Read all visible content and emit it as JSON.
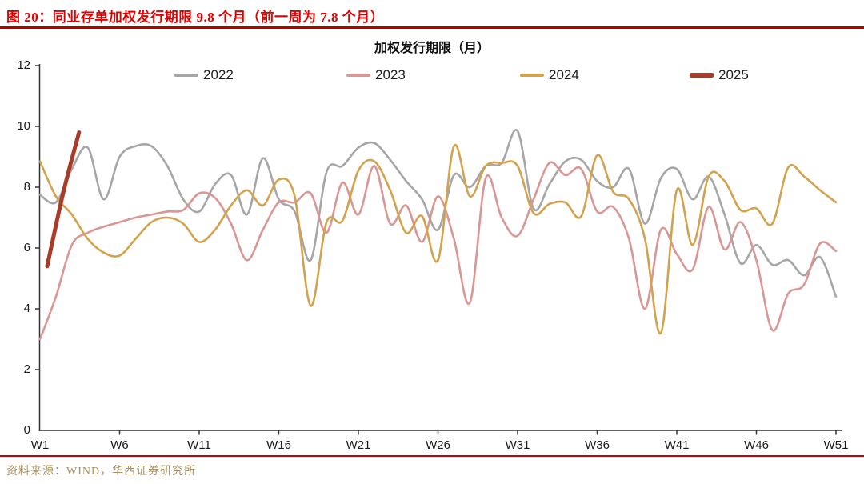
{
  "header": {
    "title": "图 20：同业存单加权发行期限 9.8 个月（前一周为 7.8 个月）"
  },
  "footer": {
    "source": "资料来源：WIND，华西证券研究所"
  },
  "colors": {
    "header_red": "#e00000",
    "rule_red": "#b50000",
    "bottom_rule_red": "#cc0000",
    "source_gold": "#a8905f",
    "axis": "#333333"
  },
  "chart_data": {
    "type": "line",
    "title": "加权发行期限（月）",
    "xlabel": "",
    "ylabel": "",
    "ylim": [
      0,
      12
    ],
    "y_ticks": [
      0,
      2,
      4,
      6,
      8,
      10,
      12
    ],
    "x_week_range": [
      1,
      51
    ],
    "x_tick_weeks": [
      1,
      6,
      11,
      16,
      21,
      26,
      31,
      36,
      41,
      46,
      51
    ],
    "x_ticklabels": [
      "W1",
      "W6",
      "W11",
      "W16",
      "W21",
      "W26",
      "W31",
      "W36",
      "W41",
      "W46",
      "W51"
    ],
    "grid": false,
    "legend_position": "top",
    "current_value": 9.8,
    "previous_week_value": 7.8,
    "series": [
      {
        "name": "2022",
        "color": "#a6a6a6",
        "line_width": 2.6,
        "start_week": 1,
        "values": [
          7.75,
          7.5,
          8.6,
          9.3,
          7.6,
          9.0,
          9.35,
          9.35,
          8.7,
          7.6,
          7.2,
          8.1,
          8.4,
          7.1,
          8.95,
          7.6,
          7.2,
          5.6,
          8.5,
          8.7,
          9.3,
          9.45,
          8.9,
          8.2,
          7.6,
          6.6,
          8.4,
          8.0,
          8.7,
          8.8,
          9.85,
          7.3,
          8.1,
          8.85,
          8.9,
          8.2,
          8.0,
          8.6,
          6.8,
          8.3,
          8.6,
          7.6,
          8.35,
          7.1,
          5.5,
          6.1,
          5.45,
          5.6,
          5.1,
          5.7,
          4.4
        ]
      },
      {
        "name": "2023",
        "color": "#d99694",
        "line_width": 2.6,
        "start_week": 1,
        "values": [
          3.0,
          4.4,
          6.1,
          6.5,
          6.7,
          6.85,
          7.0,
          7.1,
          7.2,
          7.25,
          7.8,
          7.65,
          6.8,
          5.6,
          6.6,
          7.5,
          7.5,
          7.8,
          6.5,
          8.15,
          7.1,
          8.7,
          6.8,
          7.4,
          6.2,
          7.7,
          6.3,
          4.2,
          8.3,
          7.0,
          6.4,
          7.6,
          8.8,
          8.4,
          8.6,
          7.2,
          7.35,
          6.3,
          4.0,
          6.6,
          5.8,
          5.3,
          7.35,
          5.95,
          6.85,
          5.6,
          3.3,
          4.5,
          4.8,
          6.15,
          5.9
        ]
      },
      {
        "name": "2024",
        "color": "#d2a24c",
        "line_width": 2.6,
        "start_week": 1,
        "values": [
          8.85,
          7.7,
          7.1,
          6.3,
          5.85,
          5.75,
          6.3,
          6.85,
          7.0,
          6.8,
          6.2,
          6.6,
          7.4,
          7.9,
          7.4,
          8.25,
          7.7,
          4.1,
          6.85,
          6.9,
          8.55,
          8.85,
          7.9,
          6.5,
          7.05,
          5.6,
          9.35,
          7.7,
          8.7,
          8.8,
          8.7,
          7.15,
          7.45,
          7.5,
          7.05,
          9.05,
          7.85,
          7.6,
          6.3,
          3.2,
          7.9,
          6.1,
          8.35,
          8.2,
          7.25,
          7.3,
          6.8,
          8.65,
          8.35,
          7.9,
          7.5
        ]
      },
      {
        "name": "2025",
        "color": "#a83c28",
        "line_width": 5,
        "start_week": 1,
        "x_offset_weeks": 0.45,
        "values": [
          5.4,
          7.8,
          9.8
        ]
      }
    ]
  }
}
